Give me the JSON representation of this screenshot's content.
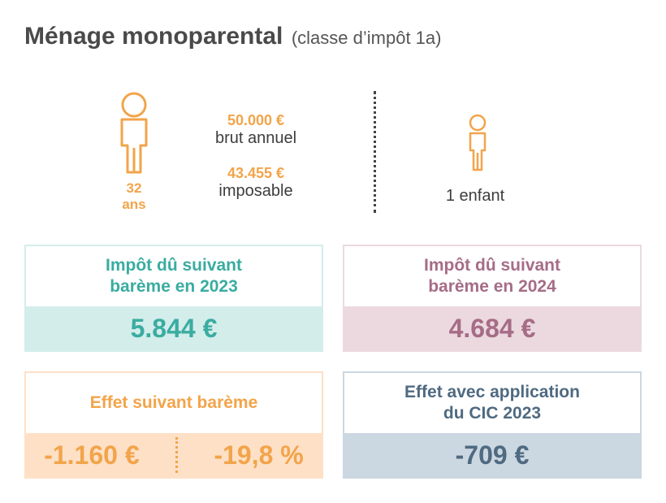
{
  "title": {
    "main": "Ménage monoparental",
    "sub": "(classe d’impôt 1a)"
  },
  "parent": {
    "icon": "adult-person-icon",
    "age_value": "32",
    "age_unit": "ans",
    "gross_amount": "50.000 €",
    "gross_label": "brut annuel",
    "taxable_amount": "43.455 €",
    "taxable_label": "imposable"
  },
  "children": {
    "icon": "child-person-icon",
    "label": "1 enfant"
  },
  "cards": {
    "tax_2023": {
      "title_line1": "Impôt dû suivant",
      "title_line2": "barème en 2023",
      "value": "5.844 €"
    },
    "tax_2024": {
      "title_line1": "Impôt dû suivant",
      "title_line2": "barème en 2024",
      "value": "4.684 €"
    },
    "effect_scale": {
      "title": "Effet suivant barème",
      "value_abs": "-1.160 €",
      "value_pct": "-19,8 %"
    },
    "effect_cic": {
      "title_line1": "Effet avec application",
      "title_line2": "du CIC 2023",
      "value": "-709 €"
    }
  },
  "colors": {
    "orange": "#f2a44a",
    "teal": "#3aaca0",
    "teal_bg": "#d3edeb",
    "mauve": "#a66c86",
    "mauve_bg": "#ecd9e0",
    "peach_bg": "#fde0c6",
    "slate": "#4f6a81",
    "slate_bg": "#cbd7e1"
  }
}
